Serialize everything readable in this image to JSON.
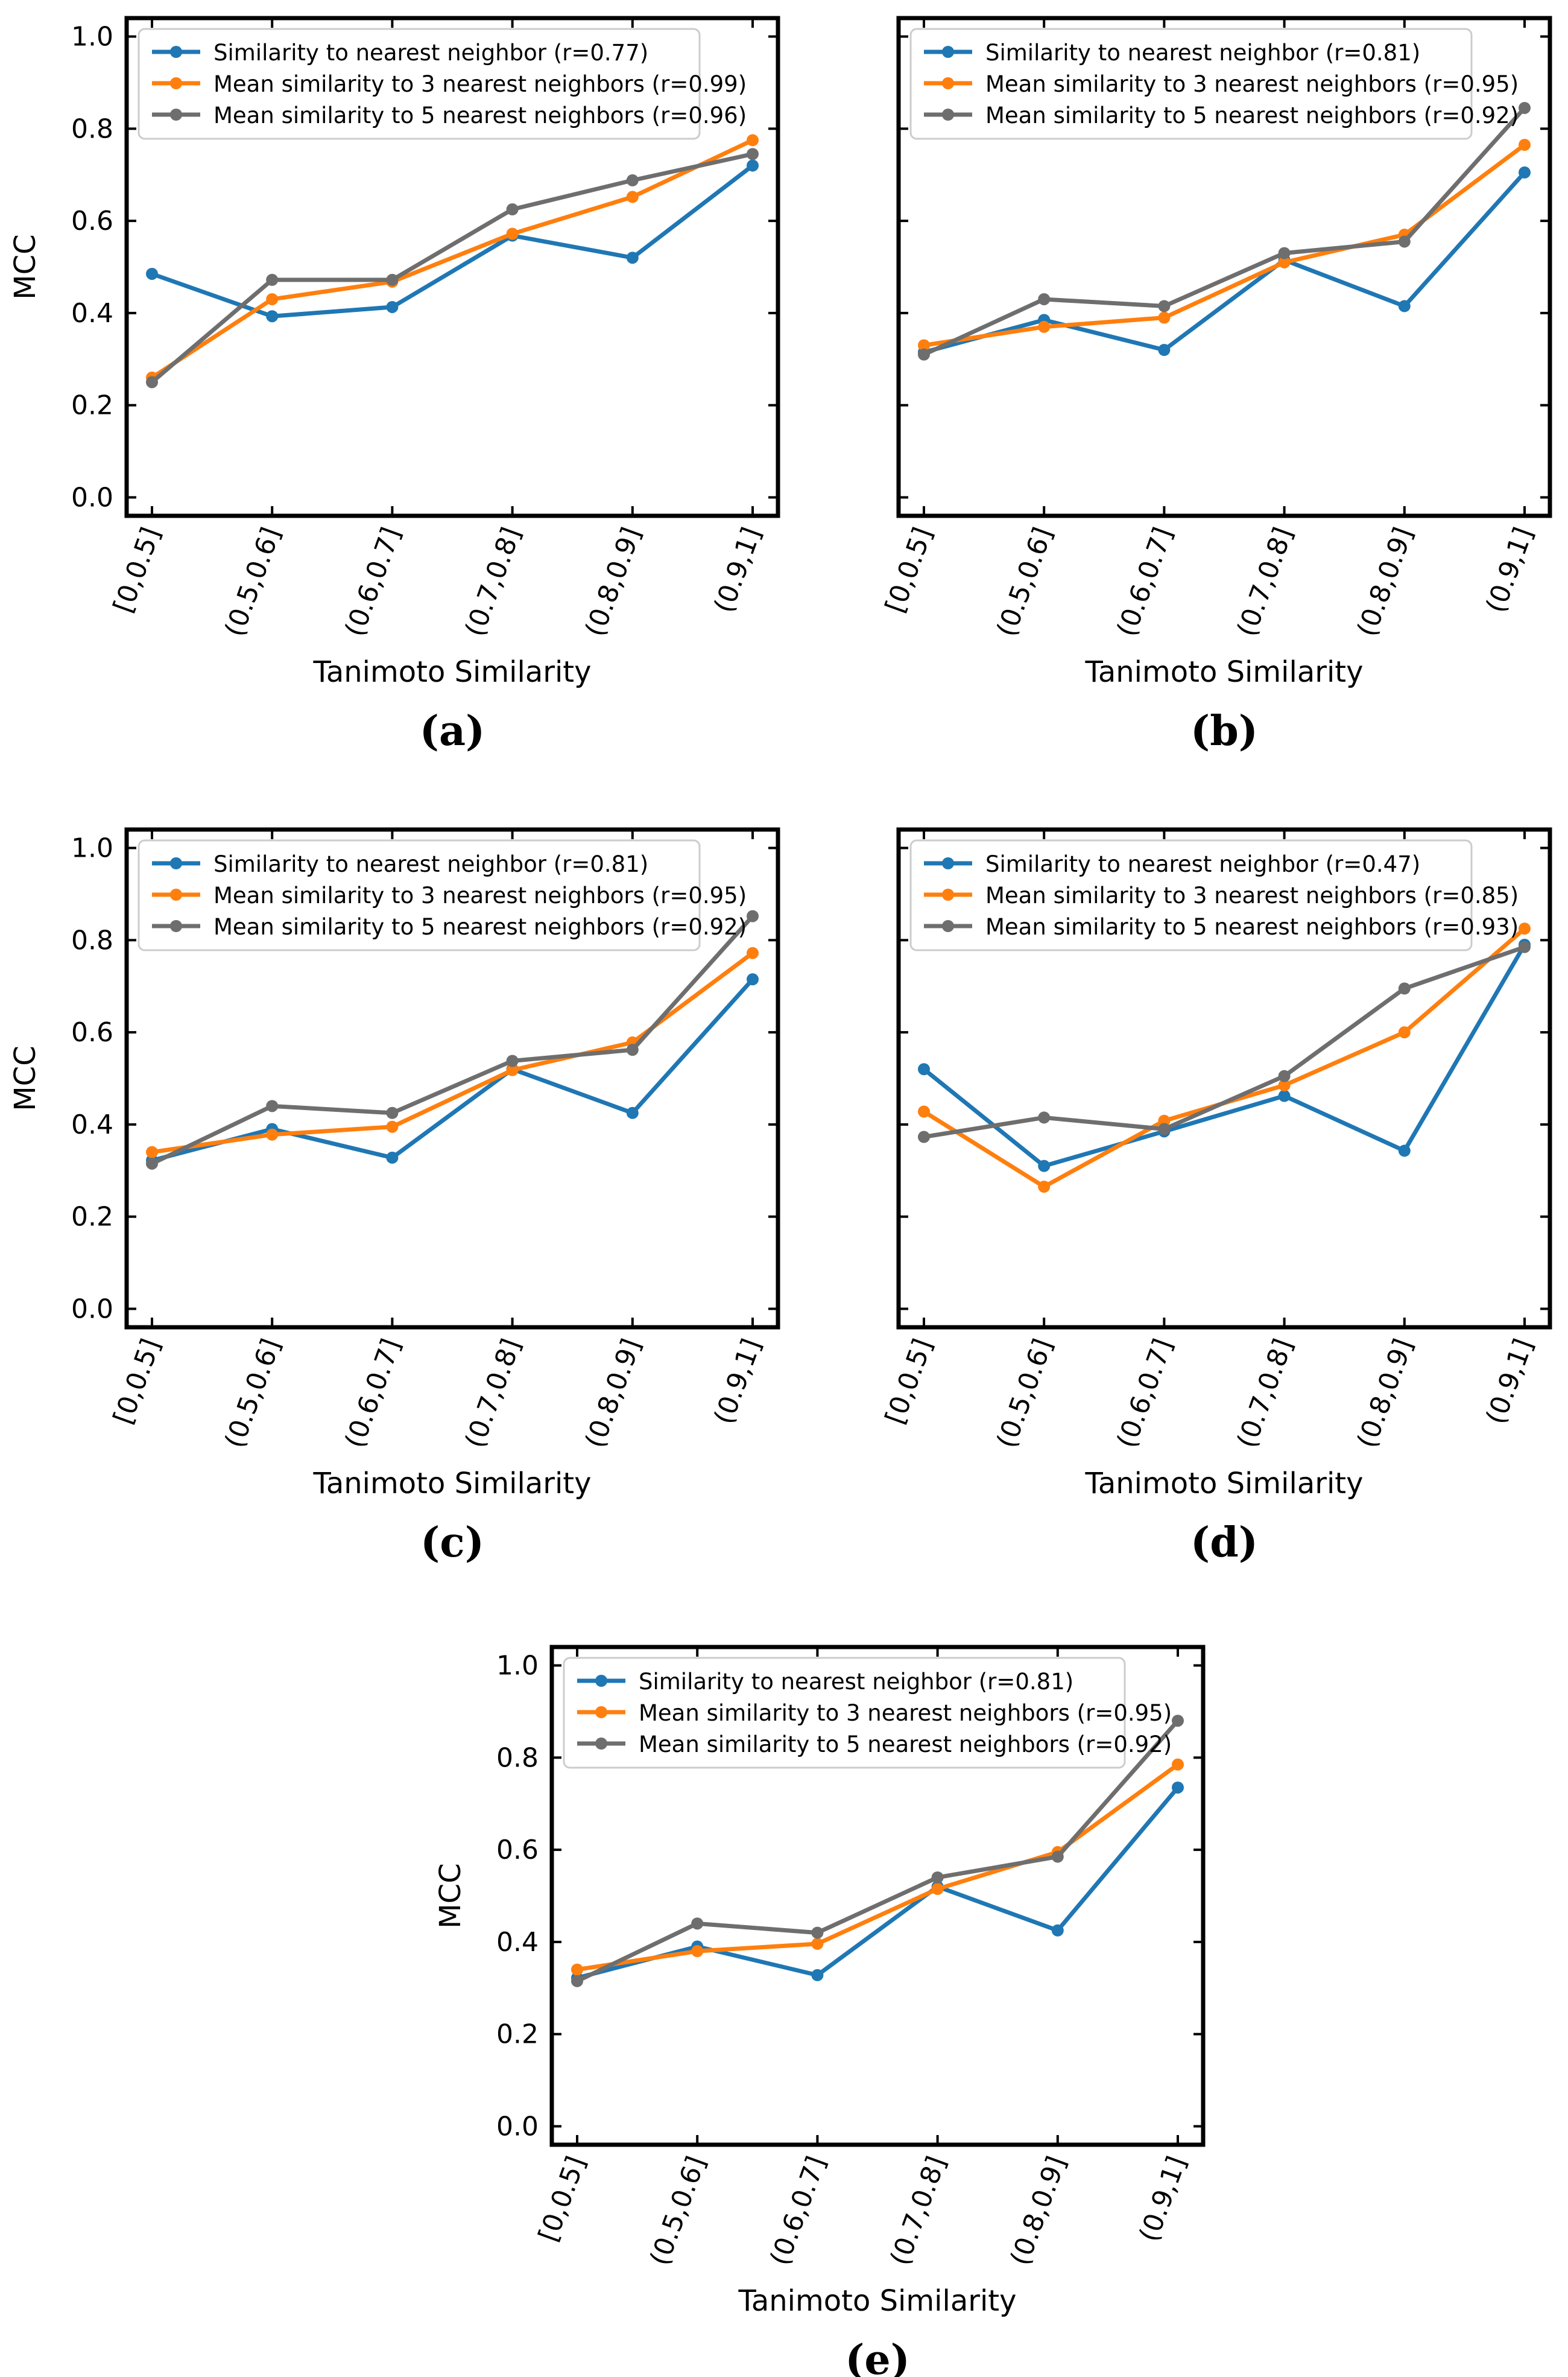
{
  "colors": {
    "series": [
      "#1f77b4",
      "#ff7f0e",
      "#6e6e6e"
    ],
    "axis": "#000000",
    "legend_border": "#cccccc",
    "background": "#ffffff"
  },
  "chart_data": [
    {
      "type": "line",
      "panel_label": "(a)",
      "xlabel": "Tanimoto Similarity",
      "ylabel": "MCC",
      "categories": [
        "[0,0.5]",
        "(0.5,0.6]",
        "(0.6,0.7]",
        "(0.7,0.8]",
        "(0.8,0.9]",
        "(0.9,1]"
      ],
      "ylim": [
        -0.04,
        1.04
      ],
      "yticks": [
        0.0,
        0.2,
        0.4,
        0.6,
        0.8,
        1.0
      ],
      "ytick_labels": [
        "0.0",
        "0.2",
        "0.4",
        "0.6",
        "0.8",
        "1.0"
      ],
      "show_yticklabels": true,
      "legend_position": "top-left",
      "series": [
        {
          "name": "Similarity to nearest neighbor (r=0.77)",
          "values": [
            0.485,
            0.393,
            0.413,
            0.568,
            0.52,
            0.72
          ]
        },
        {
          "name": "Mean similarity to 3 nearest neighbors (r=0.99)",
          "values": [
            0.26,
            0.43,
            0.468,
            0.572,
            0.652,
            0.775
          ]
        },
        {
          "name": "Mean similarity to 5 nearest neighbors (r=0.96)",
          "values": [
            0.25,
            0.472,
            0.472,
            0.625,
            0.688,
            0.745
          ]
        }
      ]
    },
    {
      "type": "line",
      "panel_label": "(b)",
      "xlabel": "Tanimoto Similarity",
      "ylabel": "",
      "categories": [
        "[0,0.5]",
        "(0.5,0.6]",
        "(0.6,0.7]",
        "(0.7,0.8]",
        "(0.8,0.9]",
        "(0.9,1]"
      ],
      "ylim": [
        -0.04,
        1.04
      ],
      "yticks": [
        0.0,
        0.2,
        0.4,
        0.6,
        0.8,
        1.0
      ],
      "ytick_labels": [
        "0.0",
        "0.2",
        "0.4",
        "0.6",
        "0.8",
        "1.0"
      ],
      "show_yticklabels": false,
      "legend_position": "top-left",
      "series": [
        {
          "name": "Similarity to nearest neighbor (r=0.81)",
          "values": [
            0.315,
            0.385,
            0.32,
            0.515,
            0.415,
            0.705
          ]
        },
        {
          "name": "Mean similarity to 3 nearest neighbors (r=0.95)",
          "values": [
            0.33,
            0.37,
            0.39,
            0.51,
            0.57,
            0.765
          ]
        },
        {
          "name": "Mean similarity to 5 nearest neighbors (r=0.92)",
          "values": [
            0.31,
            0.43,
            0.415,
            0.53,
            0.555,
            0.845
          ]
        }
      ]
    },
    {
      "type": "line",
      "panel_label": "(c)",
      "xlabel": "Tanimoto Similarity",
      "ylabel": "MCC",
      "categories": [
        "[0,0.5]",
        "(0.5,0.6]",
        "(0.6,0.7]",
        "(0.7,0.8]",
        "(0.8,0.9]",
        "(0.9,1]"
      ],
      "ylim": [
        -0.04,
        1.04
      ],
      "yticks": [
        0.0,
        0.2,
        0.4,
        0.6,
        0.8,
        1.0
      ],
      "ytick_labels": [
        "0.0",
        "0.2",
        "0.4",
        "0.6",
        "0.8",
        "1.0"
      ],
      "show_yticklabels": true,
      "legend_position": "top-left",
      "series": [
        {
          "name": "Similarity to nearest neighbor (r=0.81)",
          "values": [
            0.322,
            0.39,
            0.328,
            0.52,
            0.425,
            0.715
          ]
        },
        {
          "name": "Mean similarity to 3 nearest neighbors (r=0.95)",
          "values": [
            0.34,
            0.378,
            0.395,
            0.518,
            0.578,
            0.772
          ]
        },
        {
          "name": "Mean similarity to 5 nearest neighbors (r=0.92)",
          "values": [
            0.315,
            0.44,
            0.425,
            0.538,
            0.562,
            0.852
          ]
        }
      ]
    },
    {
      "type": "line",
      "panel_label": "(d)",
      "xlabel": "Tanimoto Similarity",
      "ylabel": "",
      "categories": [
        "[0,0.5]",
        "(0.5,0.6]",
        "(0.6,0.7]",
        "(0.7,0.8]",
        "(0.8,0.9]",
        "(0.9,1]"
      ],
      "ylim": [
        -0.04,
        1.04
      ],
      "yticks": [
        0.0,
        0.2,
        0.4,
        0.6,
        0.8,
        1.0
      ],
      "ytick_labels": [
        "0.0",
        "0.2",
        "0.4",
        "0.6",
        "0.8",
        "1.0"
      ],
      "show_yticklabels": false,
      "legend_position": "top-left",
      "series": [
        {
          "name": "Similarity to nearest neighbor (r=0.47)",
          "values": [
            0.52,
            0.31,
            0.385,
            0.462,
            0.343,
            0.79
          ]
        },
        {
          "name": "Mean similarity to 3 nearest neighbors (r=0.85)",
          "values": [
            0.428,
            0.265,
            0.408,
            0.485,
            0.6,
            0.825
          ]
        },
        {
          "name": "Mean similarity to 5 nearest neighbors (r=0.93)",
          "values": [
            0.373,
            0.415,
            0.39,
            0.505,
            0.695,
            0.785
          ]
        }
      ]
    },
    {
      "type": "line",
      "panel_label": "(e)",
      "xlabel": "Tanimoto Similarity",
      "ylabel": "MCC",
      "categories": [
        "[0,0.5]",
        "(0.5,0.6]",
        "(0.6,0.7]",
        "(0.7,0.8]",
        "(0.8,0.9]",
        "(0.9,1]"
      ],
      "ylim": [
        -0.04,
        1.04
      ],
      "yticks": [
        0.0,
        0.2,
        0.4,
        0.6,
        0.8,
        1.0
      ],
      "ytick_labels": [
        "0.0",
        "0.2",
        "0.4",
        "0.6",
        "0.8",
        "1.0"
      ],
      "show_yticklabels": true,
      "legend_position": "top-left",
      "series": [
        {
          "name": "Similarity to nearest neighbor (r=0.81)",
          "values": [
            0.322,
            0.39,
            0.328,
            0.52,
            0.425,
            0.735
          ]
        },
        {
          "name": "Mean similarity to 3 nearest neighbors (r=0.95)",
          "values": [
            0.34,
            0.38,
            0.396,
            0.515,
            0.595,
            0.785
          ]
        },
        {
          "name": "Mean similarity to 5 nearest neighbors (r=0.92)",
          "values": [
            0.315,
            0.44,
            0.42,
            0.54,
            0.585,
            0.88
          ]
        }
      ]
    }
  ]
}
